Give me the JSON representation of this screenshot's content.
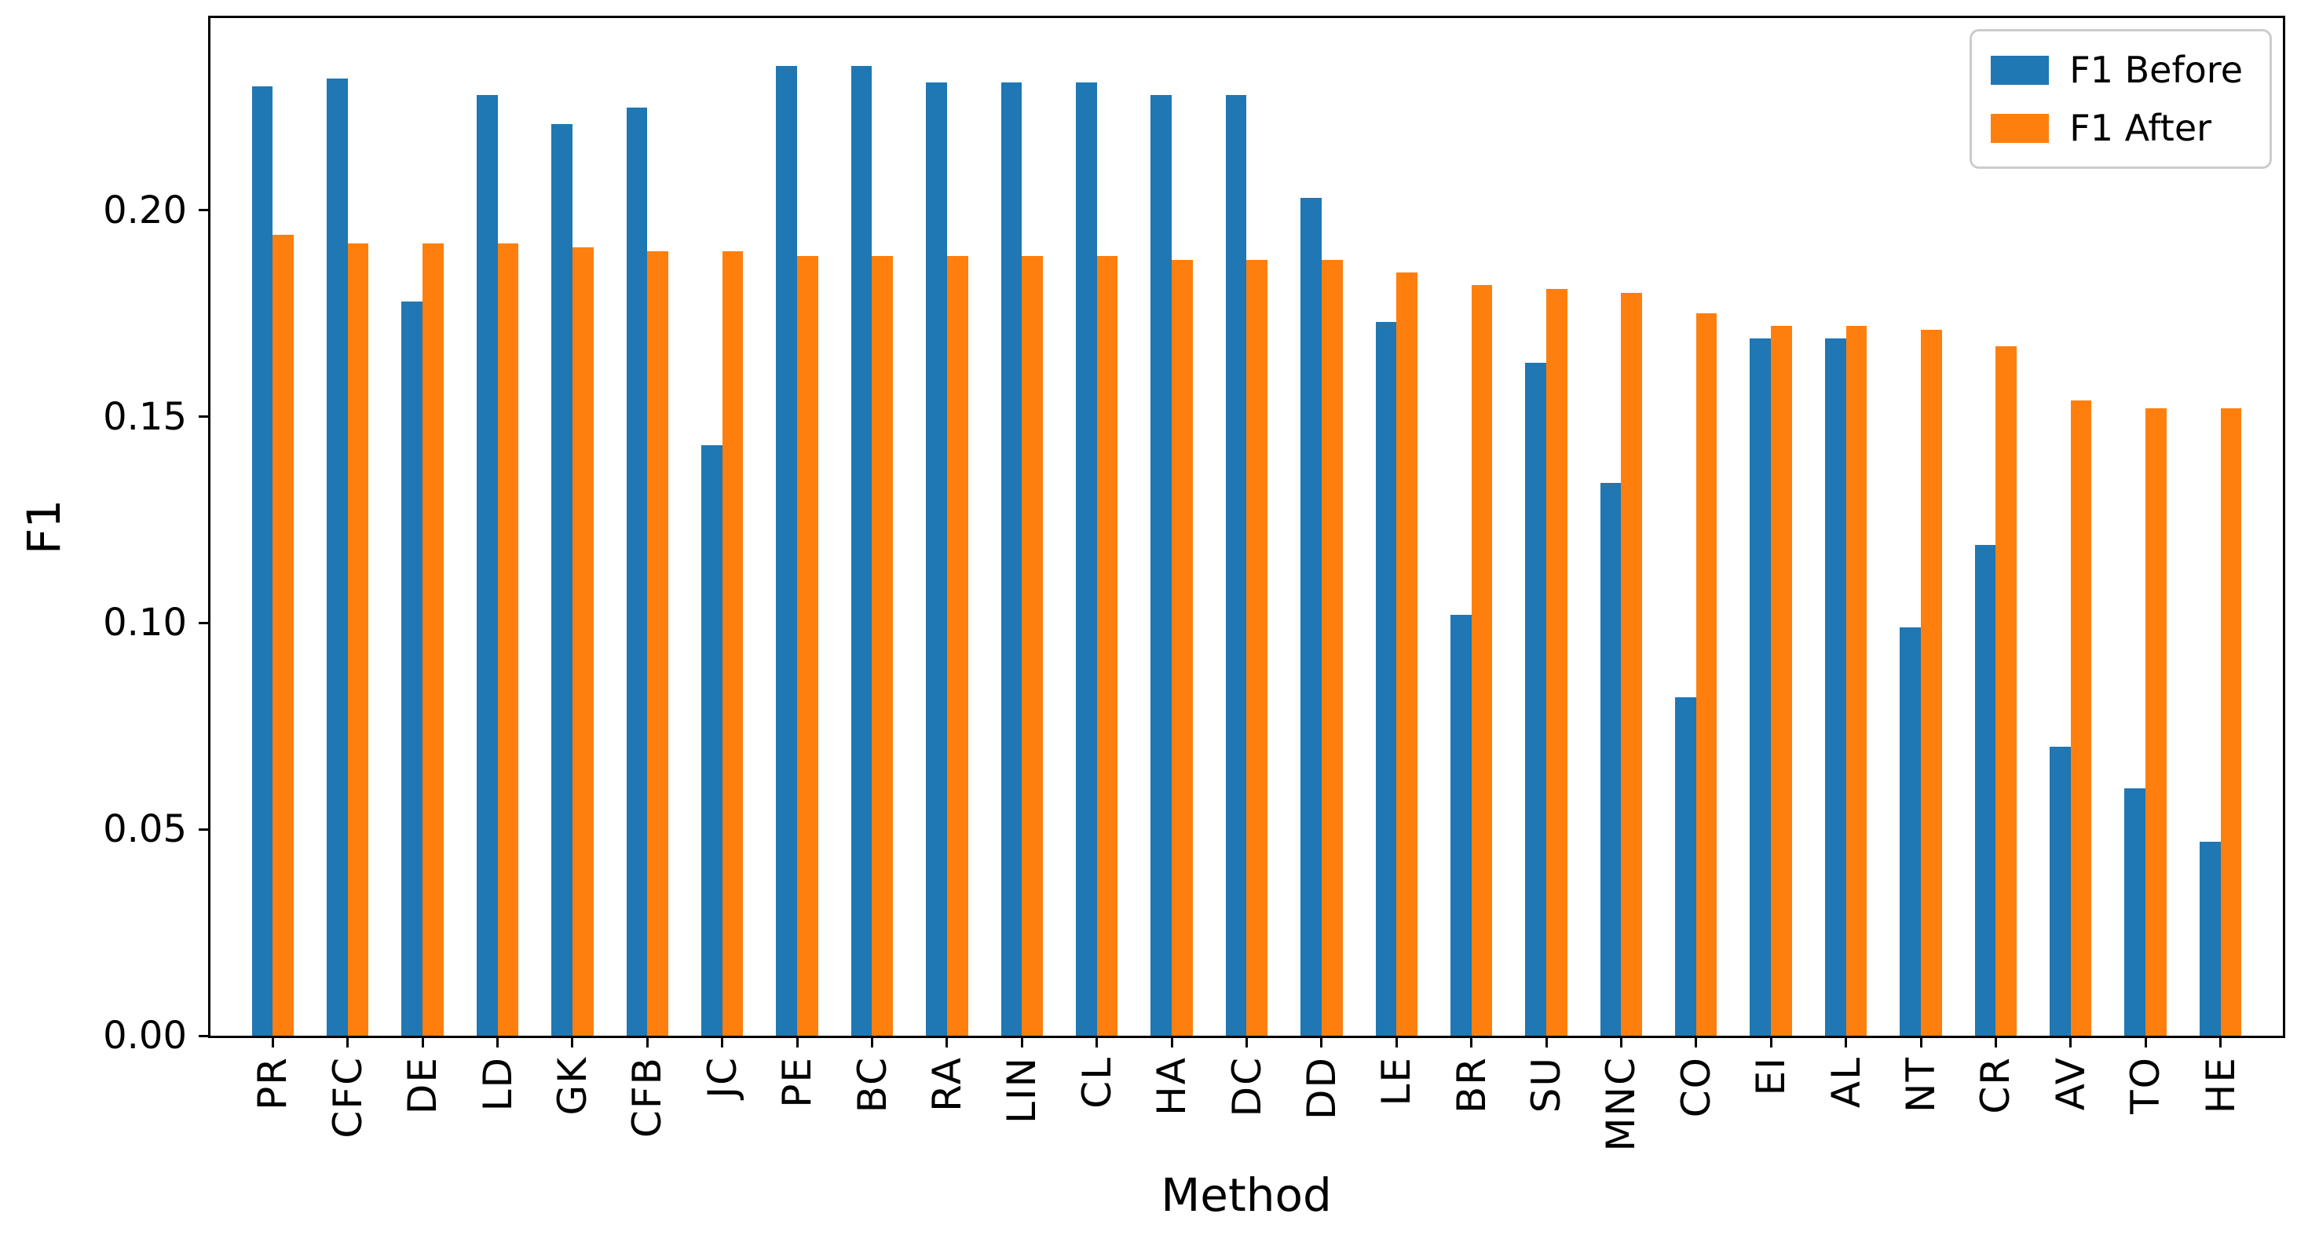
{
  "chart_data": {
    "type": "bar",
    "title": "",
    "xlabel": "Method",
    "ylabel": "F1",
    "ylim": [
      0,
      0.2466
    ],
    "yticks": [
      0.0,
      0.05,
      0.1,
      0.15,
      0.2
    ],
    "ytick_labels": [
      "0.00",
      "0.05",
      "0.10",
      "0.15",
      "0.20"
    ],
    "grid": false,
    "legend_position": "upper right",
    "categories": [
      "PR",
      "CFC",
      "DE",
      "LD",
      "GK",
      "CFB",
      "JC",
      "PE",
      "BC",
      "RA",
      "LIN",
      "CL",
      "HA",
      "DC",
      "DD",
      "LE",
      "BR",
      "SU",
      "MNC",
      "CO",
      "EI",
      "AL",
      "NT",
      "CR",
      "AV",
      "TO",
      "HE"
    ],
    "series": [
      {
        "name": "F1 Before",
        "color": "#1f77b4",
        "values": [
          0.23,
          0.232,
          0.178,
          0.228,
          0.221,
          0.225,
          0.143,
          0.235,
          0.235,
          0.231,
          0.231,
          0.231,
          0.228,
          0.228,
          0.203,
          0.173,
          0.102,
          0.163,
          0.134,
          0.082,
          0.169,
          0.169,
          0.099,
          0.119,
          0.07,
          0.06,
          0.047
        ]
      },
      {
        "name": "F1 After",
        "color": "#ff7f0e",
        "values": [
          0.194,
          0.192,
          0.192,
          0.192,
          0.191,
          0.19,
          0.19,
          0.189,
          0.189,
          0.189,
          0.189,
          0.189,
          0.188,
          0.188,
          0.188,
          0.185,
          0.182,
          0.181,
          0.18,
          0.175,
          0.172,
          0.172,
          0.171,
          0.167,
          0.154,
          0.152,
          0.152
        ]
      }
    ]
  },
  "colors": {
    "background": "#ffffff",
    "spine": "#000000",
    "legend_border": "#cccccc",
    "before": "#1f77b4",
    "after": "#ff7f0e"
  }
}
